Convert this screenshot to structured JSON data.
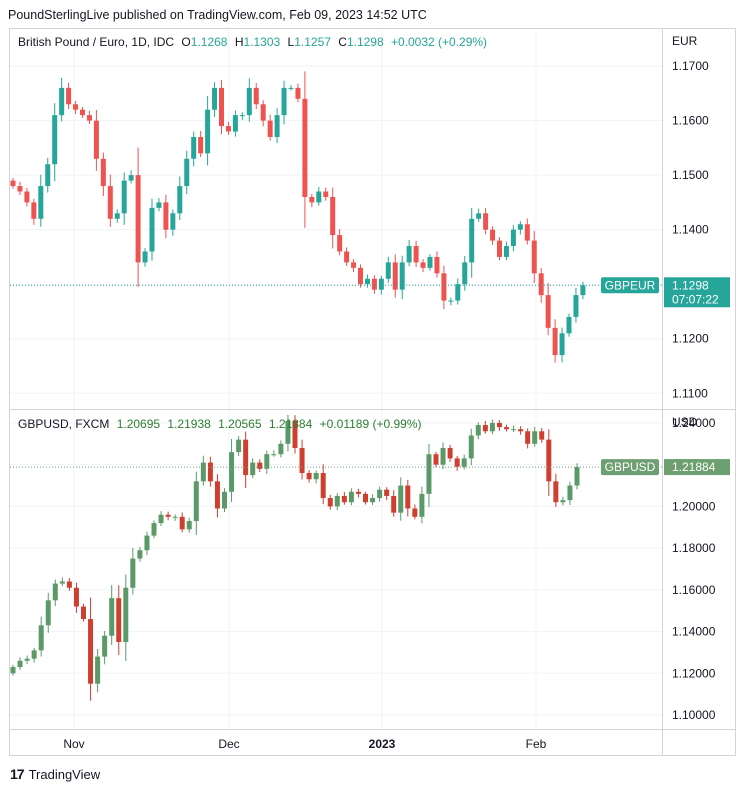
{
  "header": {
    "publisher_text": "PoundSterlingLive published on TradingView.com, Feb 09, 2023 14:52 UTC"
  },
  "footer": {
    "brand": "TradingView",
    "logo_glyph": "17"
  },
  "colors": {
    "up": "#26a69a",
    "down": "#ef5350",
    "up2": "#5b9a68",
    "down2": "#cf3f2f",
    "grid": "#f0f3fa",
    "text": "#131722"
  },
  "chart_data": [
    {
      "type": "candlestick",
      "title": "British Pound / Euro, 1D, IDC",
      "ohlc_legend": {
        "o_label": "O",
        "o": "1.1268",
        "h_label": "H",
        "h": "1.1303",
        "l_label": "L",
        "l": "1.1257",
        "c_label": "C",
        "c": "1.1298",
        "change": "+0.0032 (+0.29%)"
      },
      "currency": "EUR",
      "y_ticks": [
        "1.1700",
        "1.1600",
        "1.1500",
        "1.1400",
        "1.1300",
        "1.1200",
        "1.1100"
      ],
      "y_tick_values": [
        1.17,
        1.16,
        1.15,
        1.14,
        1.13,
        1.12,
        1.11
      ],
      "ylim": [
        1.1073,
        1.1768
      ],
      "last_price_label": "GBPEUR",
      "last_price": "1.1298",
      "countdown": "07:07:22",
      "close_values": [
        1.148,
        1.147,
        1.145,
        1.142,
        1.148,
        1.152,
        1.161,
        1.166,
        1.163,
        1.162,
        1.161,
        1.16,
        1.153,
        1.148,
        1.142,
        1.143,
        1.149,
        1.15,
        1.134,
        1.136,
        1.144,
        1.145,
        1.14,
        1.143,
        1.148,
        1.153,
        1.157,
        1.154,
        1.162,
        1.166,
        1.159,
        1.158,
        1.161,
        1.161,
        1.166,
        1.163,
        1.16,
        1.157,
        1.161,
        1.166,
        1.166,
        1.164,
        1.146,
        1.145,
        1.147,
        1.146,
        1.139,
        1.136,
        1.134,
        1.133,
        1.13,
        1.131,
        1.129,
        1.131,
        1.134,
        1.129,
        1.134,
        1.137,
        1.134,
        1.133,
        1.135,
        1.132,
        1.127,
        1.127,
        1.13,
        1.134,
        1.142,
        1.143,
        1.14,
        1.138,
        1.135,
        1.137,
        1.14,
        1.141,
        1.138,
        1.132,
        1.128,
        1.122,
        1.117,
        1.121,
        1.124,
        1.128,
        1.1298
      ]
    },
    {
      "type": "candlestick",
      "title": "GBPUSD, FXCM",
      "ohlc_legend": {
        "o": "1.20695",
        "h": "1.21938",
        "l": "1.20565",
        "c": "1.21884",
        "change": "+0.01189 (+0.99%)"
      },
      "currency": "USD",
      "y_ticks": [
        "1.24000",
        "1.22000",
        "1.20000",
        "1.18000",
        "1.16000",
        "1.14000",
        "1.12000",
        "1.10000"
      ],
      "y_tick_values": [
        1.24,
        1.22,
        1.2,
        1.18,
        1.16,
        1.14,
        1.12,
        1.1
      ],
      "ylim": [
        1.0933,
        1.2462
      ],
      "last_price_label": "GBPUSD",
      "last_price": "1.21884",
      "close_values": [
        1.123,
        1.126,
        1.127,
        1.131,
        1.143,
        1.155,
        1.163,
        1.164,
        1.161,
        1.152,
        1.146,
        1.115,
        1.128,
        1.138,
        1.156,
        1.135,
        1.161,
        1.175,
        1.179,
        1.186,
        1.192,
        1.196,
        1.195,
        1.195,
        1.189,
        1.193,
        1.212,
        1.221,
        1.212,
        1.199,
        1.207,
        1.226,
        1.232,
        1.215,
        1.221,
        1.218,
        1.225,
        1.225,
        1.23,
        1.241,
        1.228,
        1.216,
        1.213,
        1.216,
        1.204,
        1.2,
        1.205,
        1.202,
        1.207,
        1.206,
        1.202,
        1.204,
        1.208,
        1.205,
        1.197,
        1.21,
        1.199,
        1.195,
        1.206,
        1.225,
        1.22,
        1.228,
        1.223,
        1.219,
        1.223,
        1.234,
        1.239,
        1.236,
        1.24,
        1.238,
        1.237,
        1.237,
        1.236,
        1.23,
        1.236,
        1.232,
        1.212,
        1.202,
        1.203,
        1.21,
        1.21884
      ],
      "x_tick_labels": [
        "Nov",
        "Dec",
        "2023",
        "Feb"
      ]
    }
  ]
}
